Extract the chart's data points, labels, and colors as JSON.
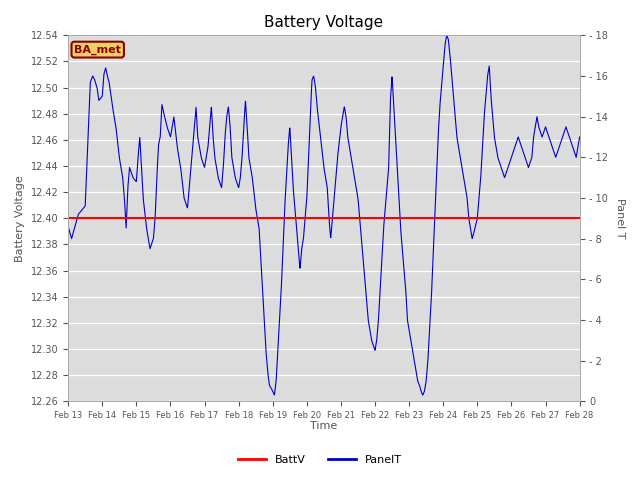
{
  "title": "Battery Voltage",
  "xlabel": "Time",
  "ylabel_left": "Battery Voltage",
  "ylabel_right": "Panel T",
  "ylim_left": [
    12.26,
    12.54
  ],
  "ylim_right": [
    0,
    18
  ],
  "batt_v_value": 12.4,
  "batt_color": "#ff0000",
  "panel_color": "#0000cc",
  "bg_color": "#dcdcdc",
  "fig_bg": "#ffffff",
  "annotation_text": "BA_met",
  "annotation_bg": "#f0d060",
  "annotation_border": "#8b0000",
  "annotation_text_color": "#8b0000",
  "legend_batt": "BattV",
  "legend_panel": "PanelT",
  "title_fontsize": 11,
  "axis_label_fontsize": 8,
  "tick_fontsize": 7,
  "x_tick_labels": [
    "Feb 13",
    "Feb 14",
    "Feb 15",
    "Feb 16",
    "Feb 17",
    "Feb 18",
    "Feb 19",
    "Feb 20",
    "Feb 21",
    "Feb 22",
    "Feb 23",
    "Feb 24",
    "Feb 25",
    "Feb 26",
    "Feb 27",
    "Feb 28"
  ],
  "yticks_left": [
    12.26,
    12.28,
    12.3,
    12.32,
    12.34,
    12.36,
    12.38,
    12.4,
    12.42,
    12.44,
    12.46,
    12.48,
    12.5,
    12.52,
    12.54
  ],
  "yticks_right": [
    0,
    2,
    4,
    6,
    8,
    10,
    12,
    14,
    16,
    18
  ],
  "panel_t_keypoints": [
    [
      0.0,
      8.6
    ],
    [
      0.1,
      8.0
    ],
    [
      0.3,
      9.2
    ],
    [
      0.5,
      9.6
    ],
    [
      0.65,
      15.7
    ],
    [
      0.72,
      16.0
    ],
    [
      0.78,
      15.8
    ],
    [
      0.85,
      15.4
    ],
    [
      0.9,
      14.8
    ],
    [
      1.0,
      15.0
    ],
    [
      1.05,
      16.1
    ],
    [
      1.1,
      16.4
    ],
    [
      1.15,
      16.0
    ],
    [
      1.2,
      15.7
    ],
    [
      1.3,
      14.5
    ],
    [
      1.4,
      13.5
    ],
    [
      1.5,
      12.0
    ],
    [
      1.6,
      11.0
    ],
    [
      1.65,
      10.0
    ],
    [
      1.7,
      8.5
    ],
    [
      1.75,
      10.5
    ],
    [
      1.8,
      11.5
    ],
    [
      1.9,
      11.0
    ],
    [
      2.0,
      10.8
    ],
    [
      2.05,
      12.0
    ],
    [
      2.1,
      13.0
    ],
    [
      2.15,
      11.5
    ],
    [
      2.2,
      10.0
    ],
    [
      2.3,
      8.5
    ],
    [
      2.4,
      7.5
    ],
    [
      2.5,
      8.0
    ],
    [
      2.55,
      9.0
    ],
    [
      2.6,
      11.0
    ],
    [
      2.65,
      12.6
    ],
    [
      2.7,
      13.0
    ],
    [
      2.75,
      14.6
    ],
    [
      2.8,
      14.2
    ],
    [
      2.9,
      13.5
    ],
    [
      3.0,
      13.0
    ],
    [
      3.05,
      13.5
    ],
    [
      3.1,
      14.0
    ],
    [
      3.2,
      12.5
    ],
    [
      3.3,
      11.5
    ],
    [
      3.4,
      10.0
    ],
    [
      3.5,
      9.5
    ],
    [
      3.55,
      10.5
    ],
    [
      3.6,
      11.5
    ],
    [
      3.65,
      12.5
    ],
    [
      3.7,
      13.5
    ],
    [
      3.75,
      14.5
    ],
    [
      3.8,
      13.0
    ],
    [
      3.9,
      12.0
    ],
    [
      4.0,
      11.5
    ],
    [
      4.05,
      12.0
    ],
    [
      4.1,
      12.5
    ],
    [
      4.15,
      13.5
    ],
    [
      4.2,
      14.5
    ],
    [
      4.25,
      13.0
    ],
    [
      4.3,
      12.0
    ],
    [
      4.4,
      11.0
    ],
    [
      4.5,
      10.5
    ],
    [
      4.55,
      11.5
    ],
    [
      4.6,
      13.0
    ],
    [
      4.65,
      14.0
    ],
    [
      4.7,
      14.5
    ],
    [
      4.75,
      13.5
    ],
    [
      4.8,
      12.0
    ],
    [
      4.9,
      11.0
    ],
    [
      5.0,
      10.5
    ],
    [
      5.05,
      11.0
    ],
    [
      5.1,
      12.0
    ],
    [
      5.15,
      13.5
    ],
    [
      5.2,
      14.8
    ],
    [
      5.25,
      13.5
    ],
    [
      5.3,
      12.0
    ],
    [
      5.4,
      11.0
    ],
    [
      5.5,
      9.5
    ],
    [
      5.6,
      8.5
    ],
    [
      5.65,
      7.0
    ],
    [
      5.7,
      5.5
    ],
    [
      5.75,
      4.0
    ],
    [
      5.8,
      2.5
    ],
    [
      5.85,
      1.5
    ],
    [
      5.9,
      0.8
    ],
    [
      6.0,
      0.5
    ],
    [
      6.05,
      0.3
    ],
    [
      6.1,
      1.0
    ],
    [
      6.15,
      2.5
    ],
    [
      6.2,
      4.0
    ],
    [
      6.25,
      5.5
    ],
    [
      6.3,
      7.5
    ],
    [
      6.35,
      9.5
    ],
    [
      6.4,
      11.0
    ],
    [
      6.45,
      12.5
    ],
    [
      6.5,
      13.5
    ],
    [
      6.55,
      12.0
    ],
    [
      6.6,
      10.5
    ],
    [
      6.65,
      9.5
    ],
    [
      6.7,
      8.5
    ],
    [
      6.75,
      7.5
    ],
    [
      6.8,
      6.5
    ],
    [
      6.85,
      7.5
    ],
    [
      6.9,
      8.0
    ],
    [
      6.95,
      9.0
    ],
    [
      7.0,
      10.0
    ],
    [
      7.05,
      12.0
    ],
    [
      7.1,
      14.0
    ],
    [
      7.15,
      15.8
    ],
    [
      7.2,
      16.0
    ],
    [
      7.25,
      15.5
    ],
    [
      7.3,
      14.5
    ],
    [
      7.4,
      13.0
    ],
    [
      7.5,
      11.5
    ],
    [
      7.6,
      10.5
    ],
    [
      7.65,
      9.0
    ],
    [
      7.7,
      8.0
    ],
    [
      7.75,
      9.0
    ],
    [
      7.8,
      10.0
    ],
    [
      7.85,
      11.0
    ],
    [
      7.9,
      12.0
    ],
    [
      8.0,
      13.5
    ],
    [
      8.05,
      14.0
    ],
    [
      8.1,
      14.5
    ],
    [
      8.15,
      14.0
    ],
    [
      8.2,
      13.0
    ],
    [
      8.3,
      12.0
    ],
    [
      8.4,
      11.0
    ],
    [
      8.5,
      10.0
    ],
    [
      8.55,
      9.0
    ],
    [
      8.6,
      8.0
    ],
    [
      8.65,
      7.0
    ],
    [
      8.7,
      6.0
    ],
    [
      8.75,
      5.0
    ],
    [
      8.8,
      4.0
    ],
    [
      8.85,
      3.5
    ],
    [
      8.9,
      3.0
    ],
    [
      9.0,
      2.5
    ],
    [
      9.05,
      3.0
    ],
    [
      9.1,
      4.0
    ],
    [
      9.15,
      5.5
    ],
    [
      9.2,
      7.0
    ],
    [
      9.25,
      8.5
    ],
    [
      9.3,
      9.5
    ],
    [
      9.35,
      10.5
    ],
    [
      9.4,
      11.5
    ],
    [
      9.45,
      14.8
    ],
    [
      9.5,
      16.0
    ],
    [
      9.55,
      14.5
    ],
    [
      9.6,
      13.0
    ],
    [
      9.65,
      11.5
    ],
    [
      9.7,
      10.0
    ],
    [
      9.75,
      8.5
    ],
    [
      9.8,
      7.5
    ],
    [
      9.85,
      6.5
    ],
    [
      9.9,
      5.5
    ],
    [
      9.95,
      4.0
    ],
    [
      10.0,
      3.5
    ],
    [
      10.05,
      3.0
    ],
    [
      10.1,
      2.5
    ],
    [
      10.15,
      2.0
    ],
    [
      10.2,
      1.5
    ],
    [
      10.25,
      1.0
    ],
    [
      10.3,
      0.8
    ],
    [
      10.35,
      0.5
    ],
    [
      10.4,
      0.3
    ],
    [
      10.45,
      0.5
    ],
    [
      10.5,
      1.0
    ],
    [
      10.55,
      2.0
    ],
    [
      10.6,
      3.5
    ],
    [
      10.65,
      5.0
    ],
    [
      10.7,
      7.0
    ],
    [
      10.75,
      9.0
    ],
    [
      10.8,
      11.0
    ],
    [
      10.85,
      13.0
    ],
    [
      10.9,
      14.5
    ],
    [
      10.95,
      15.5
    ],
    [
      11.0,
      16.5
    ],
    [
      11.05,
      17.5
    ],
    [
      11.1,
      18.0
    ],
    [
      11.15,
      17.8
    ],
    [
      11.2,
      17.0
    ],
    [
      11.25,
      16.0
    ],
    [
      11.3,
      15.0
    ],
    [
      11.35,
      14.0
    ],
    [
      11.4,
      13.0
    ],
    [
      11.5,
      12.0
    ],
    [
      11.6,
      11.0
    ],
    [
      11.7,
      10.0
    ],
    [
      11.75,
      9.0
    ],
    [
      11.8,
      8.5
    ],
    [
      11.85,
      8.0
    ],
    [
      11.9,
      8.3
    ],
    [
      12.0,
      9.0
    ],
    [
      12.05,
      10.0
    ],
    [
      12.1,
      11.0
    ],
    [
      12.15,
      12.5
    ],
    [
      12.2,
      14.0
    ],
    [
      12.25,
      15.0
    ],
    [
      12.3,
      16.0
    ],
    [
      12.35,
      16.5
    ],
    [
      12.4,
      15.0
    ],
    [
      12.45,
      14.0
    ],
    [
      12.5,
      13.0
    ],
    [
      12.6,
      12.0
    ],
    [
      12.7,
      11.5
    ],
    [
      12.8,
      11.0
    ],
    [
      12.9,
      11.5
    ],
    [
      13.0,
      12.0
    ],
    [
      13.1,
      12.5
    ],
    [
      13.2,
      13.0
    ],
    [
      13.3,
      12.5
    ],
    [
      13.4,
      12.0
    ],
    [
      13.5,
      11.5
    ],
    [
      13.6,
      12.0
    ],
    [
      13.65,
      13.0
    ],
    [
      13.7,
      13.5
    ],
    [
      13.75,
      14.0
    ],
    [
      13.8,
      13.5
    ],
    [
      13.9,
      13.0
    ],
    [
      14.0,
      13.5
    ],
    [
      14.1,
      13.0
    ],
    [
      14.2,
      12.5
    ],
    [
      14.3,
      12.0
    ],
    [
      14.4,
      12.5
    ],
    [
      14.5,
      13.0
    ],
    [
      14.6,
      13.5
    ],
    [
      14.7,
      13.0
    ],
    [
      14.8,
      12.5
    ],
    [
      14.9,
      12.0
    ],
    [
      15.0,
      13.0
    ]
  ]
}
